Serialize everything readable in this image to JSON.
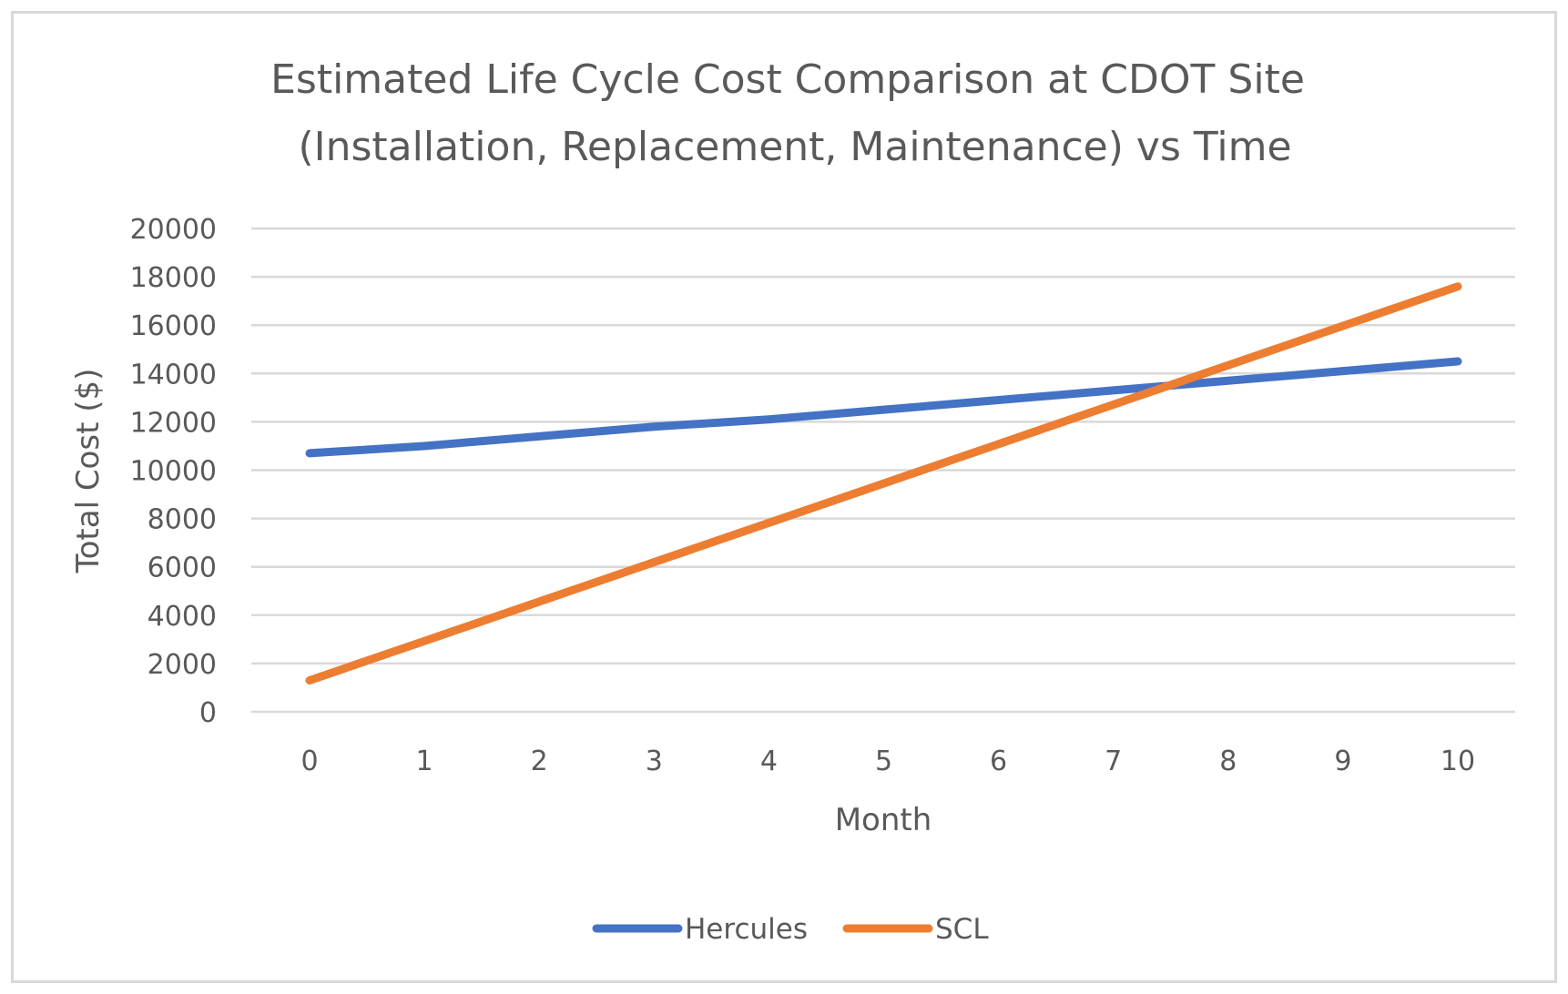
{
  "chart_data": {
    "type": "line",
    "title": "Estimated Life Cycle Cost Comparison at CDOT Site",
    "subtitle": "(Installation, Replacement, Maintenance) vs Time",
    "xlabel": "Month",
    "ylabel": "Total Cost ($)",
    "x": [
      0,
      1,
      2,
      3,
      4,
      5,
      6,
      7,
      8,
      9,
      10
    ],
    "x_tick_labels": [
      "0",
      "1",
      "2",
      "3",
      "4",
      "5",
      "6",
      "7",
      "8",
      "9",
      "10"
    ],
    "y_tick_labels": [
      "0",
      "2000",
      "4000",
      "6000",
      "8000",
      "10000",
      "12000",
      "14000",
      "16000",
      "18000",
      "20000"
    ],
    "y_ticks": [
      0,
      2000,
      4000,
      6000,
      8000,
      10000,
      12000,
      14000,
      16000,
      18000,
      20000
    ],
    "ylim": [
      0,
      20000
    ],
    "xlim": [
      0,
      10
    ],
    "grid": "horizontal",
    "legend_position": "bottom",
    "series": [
      {
        "name": "Hercules",
        "color": "#4472c4",
        "values": [
          10700,
          11000,
          11400,
          11800,
          12100,
          12500,
          12900,
          13300,
          13700,
          14100,
          14500
        ]
      },
      {
        "name": "SCL",
        "color": "#ed7d31",
        "values": [
          1300,
          2930,
          4560,
          6190,
          7820,
          9450,
          11080,
          12710,
          14340,
          15970,
          17600
        ]
      }
    ]
  }
}
